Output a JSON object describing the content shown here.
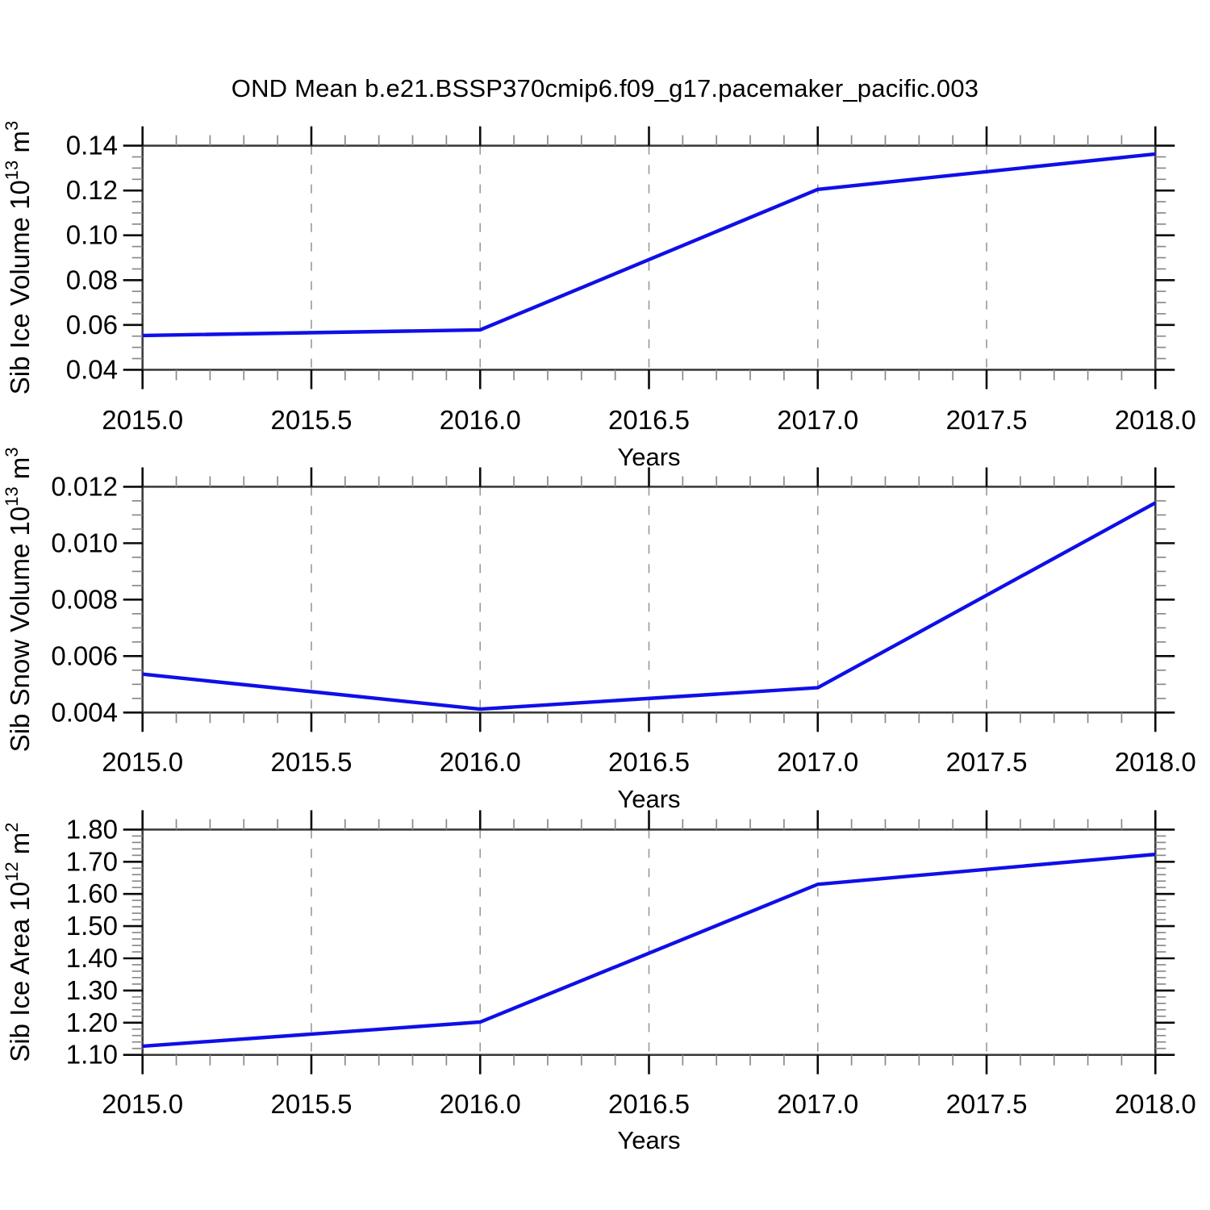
{
  "title": "OND Mean b.e21.BSSP370cmip6.f09_g17.pacemaker_pacific.003",
  "colors": {
    "line": "#0f0fe8",
    "frame": "#3c3c3c",
    "major_tick": "#0a0a0a",
    "minor_tick": "#8a8a8a",
    "grid": "#999999",
    "text": "#000000",
    "background": "#ffffff"
  },
  "chart_data": [
    {
      "type": "line",
      "name": "sib-ice-volume",
      "ylabel": {
        "base": "Sib Ice Volume 10",
        "exp": "13",
        "unit": " m",
        "unit_exp": "3"
      },
      "xlabel": "Years",
      "x": [
        2015,
        2016,
        2017,
        2018
      ],
      "y": [
        0.0553,
        0.0578,
        0.1205,
        0.1363
      ],
      "xlim": [
        2015.0,
        2018.0
      ],
      "ylim": [
        0.04,
        0.14
      ],
      "x_major_step": 0.5,
      "x_minor_step": 0.1,
      "y_major_step": 0.02,
      "y_minor_step": 0.005,
      "x_tick_labels": [
        "2015.0",
        "2015.5",
        "2016.0",
        "2016.5",
        "2017.0",
        "2017.5",
        "2018.0"
      ],
      "y_tick_labels": [
        "0.04",
        "0.06",
        "0.08",
        "0.10",
        "0.12",
        "0.14"
      ],
      "grid_x": [
        2015.5,
        2016.0,
        2016.5,
        2017.0,
        2017.5
      ],
      "grid_on": "x-major-dashed",
      "legend": "none"
    },
    {
      "type": "line",
      "name": "sib-snow-volume",
      "ylabel": {
        "base": "Sib Snow Volume 10",
        "exp": "13",
        "unit": " m",
        "unit_exp": "3"
      },
      "xlabel": "Years",
      "x": [
        2015,
        2016,
        2017,
        2018
      ],
      "y": [
        0.00536,
        0.00412,
        0.00488,
        0.01143
      ],
      "xlim": [
        2015.0,
        2018.0
      ],
      "ylim": [
        0.004,
        0.012
      ],
      "x_major_step": 0.5,
      "x_minor_step": 0.1,
      "y_major_step": 0.002,
      "y_minor_step": 0.0005,
      "x_tick_labels": [
        "2015.0",
        "2015.5",
        "2016.0",
        "2016.5",
        "2017.0",
        "2017.5",
        "2018.0"
      ],
      "y_tick_labels": [
        "0.004",
        "0.006",
        "0.008",
        "0.010",
        "0.012"
      ],
      "grid_x": [
        2015.5,
        2016.0,
        2016.5,
        2017.0,
        2017.5
      ],
      "grid_on": "x-major-dashed",
      "legend": "none"
    },
    {
      "type": "line",
      "name": "sib-ice-area",
      "ylabel": {
        "base": "Sib Ice Area 10",
        "exp": "12",
        "unit": " m",
        "unit_exp": "2"
      },
      "xlabel": "Years",
      "x": [
        2015,
        2016,
        2017,
        2018
      ],
      "y": [
        1.127,
        1.202,
        1.63,
        1.723
      ],
      "xlim": [
        2015.0,
        2018.0
      ],
      "ylim": [
        1.1,
        1.8
      ],
      "x_major_step": 0.5,
      "x_minor_step": 0.1,
      "y_major_step": 0.1,
      "y_minor_step": 0.02,
      "x_tick_labels": [
        "2015.0",
        "2015.5",
        "2016.0",
        "2016.5",
        "2017.0",
        "2017.5",
        "2018.0"
      ],
      "y_tick_labels": [
        "1.10",
        "1.20",
        "1.30",
        "1.40",
        "1.50",
        "1.60",
        "1.70",
        "1.80"
      ],
      "grid_x": [
        2015.5,
        2016.0,
        2016.5,
        2017.0,
        2017.5
      ],
      "grid_on": "x-major-dashed",
      "legend": "none"
    }
  ]
}
